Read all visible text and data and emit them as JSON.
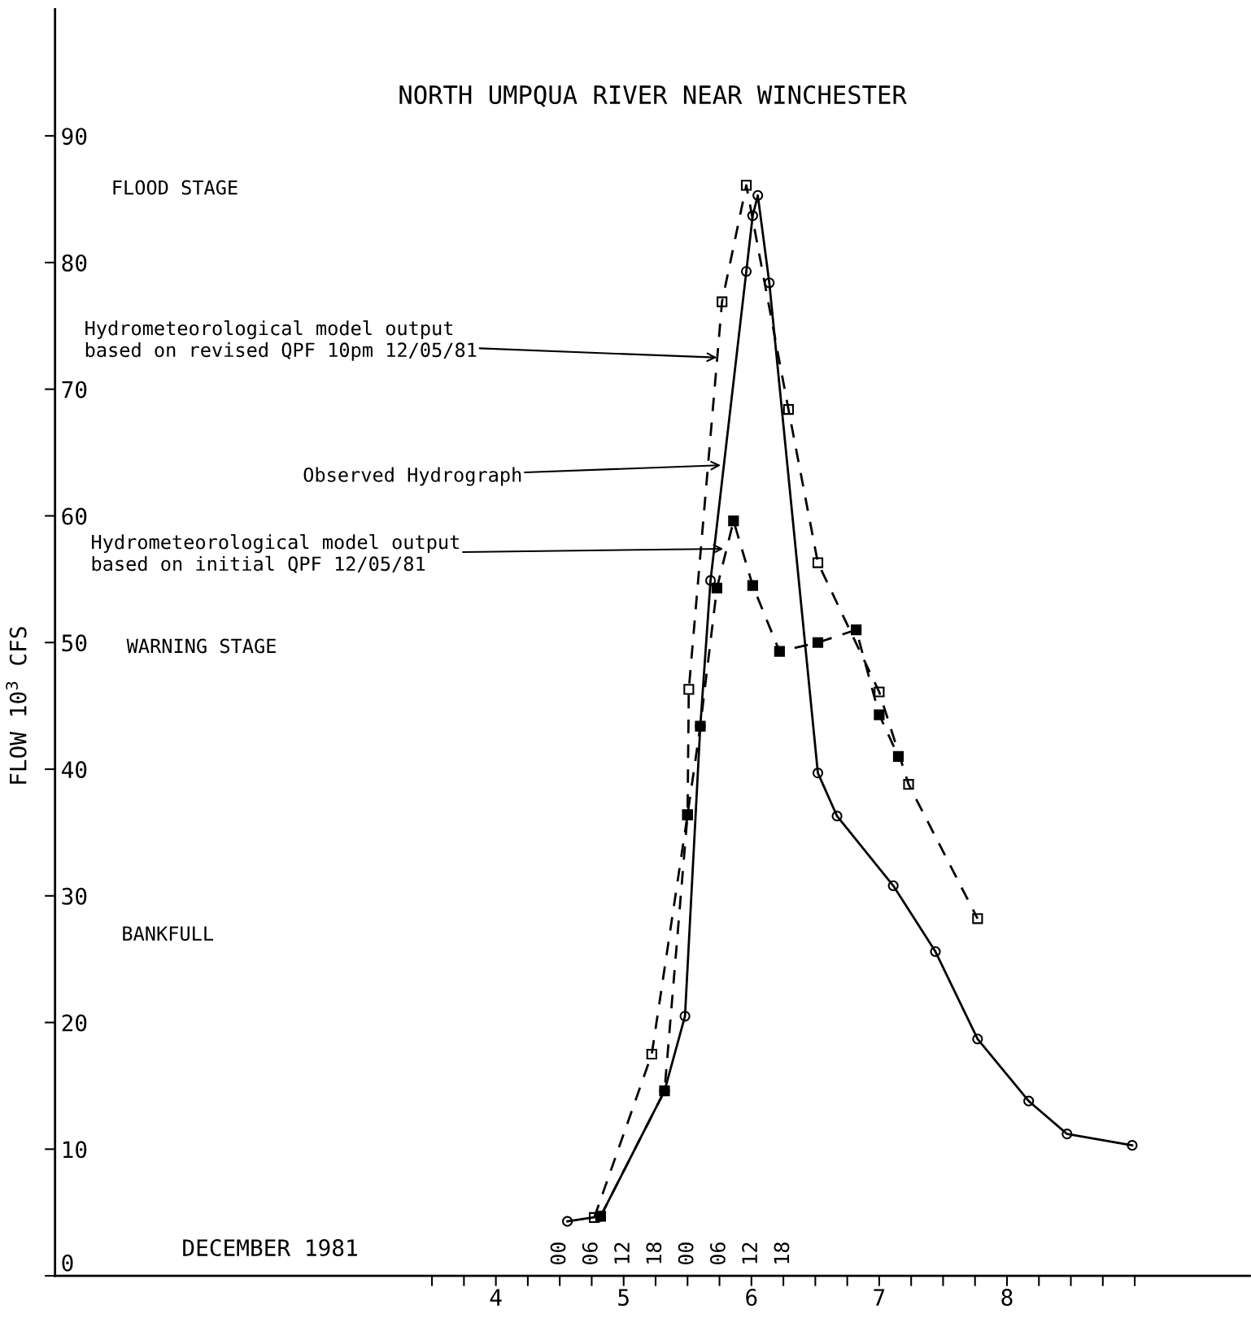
{
  "chart_data": {
    "type": "line",
    "title": "NORTH UMPQUA RIVER NEAR WINCHESTER",
    "xlabel": "DECEMBER 1981",
    "ylabel": "FLOW 10$^{3}$ CFS",
    "xlim": [
      1.05,
      10.4
    ],
    "ylim": [
      0,
      100
    ],
    "yticks": [
      0,
      10,
      20,
      30,
      40,
      50,
      60,
      70,
      80,
      90
    ],
    "xticks": [
      {
        "value": 4,
        "label": null
      },
      {
        "value": 4.25,
        "label": null
      },
      {
        "value": 4.5,
        "label": "4"
      },
      {
        "value": 4.75,
        "label": null
      },
      {
        "value": 5,
        "label": null
      },
      {
        "value": 5.25,
        "label": null
      },
      {
        "value": 5.5,
        "label": "5"
      },
      {
        "value": 5.75,
        "label": null
      },
      {
        "value": 6,
        "label": null
      },
      {
        "value": 6.25,
        "label": null
      },
      {
        "value": 6.5,
        "label": "6"
      },
      {
        "value": 6.75,
        "label": null
      },
      {
        "value": 7,
        "label": null
      },
      {
        "value": 7.25,
        "label": null
      },
      {
        "value": 7.5,
        "label": "7"
      },
      {
        "value": 7.75,
        "label": null
      },
      {
        "value": 8,
        "label": null
      },
      {
        "value": 8.25,
        "label": null
      },
      {
        "value": 8.5,
        "label": "8"
      },
      {
        "value": 8.75,
        "label": null
      },
      {
        "value": 9,
        "label": null
      },
      {
        "value": 9.25,
        "label": null
      },
      {
        "value": 9.5,
        "label": null
      }
    ],
    "grid": false,
    "legend": false,
    "series": [
      {
        "color": "#000000",
        "line_style": "solid",
        "marker": "circle",
        "x": [
          5.06,
          5.32,
          5.82,
          5.98,
          6.1,
          6.18,
          6.46,
          6.51,
          6.55,
          6.64,
          7.02,
          7.17,
          7.61,
          7.94,
          8.27,
          8.67,
          8.97,
          9.48
        ],
        "values": [
          4.3,
          4.7,
          14.6,
          20.5,
          43.4,
          54.9,
          79.3,
          83.7,
          85.3,
          78.4,
          39.7,
          36.3,
          30.8,
          25.6,
          18.7,
          13.8,
          11.2,
          10.3
        ]
      },
      {
        "color": "#000000",
        "line_style": "dashed",
        "marker": "square",
        "x": [
          5.27,
          5.72,
          6.0,
          6.01,
          6.27,
          6.46,
          6.79,
          7.02,
          7.5,
          7.73,
          8.27
        ],
        "values": [
          4.6,
          17.5,
          36.4,
          46.3,
          76.9,
          86.1,
          68.4,
          56.3,
          46.1,
          38.8,
          28.2
        ]
      },
      {
        "color": "#000000",
        "line_style": "dashed",
        "marker": "square",
        "x": [
          5.32,
          5.82,
          6.0,
          6.1,
          6.23,
          6.36,
          6.51,
          6.72,
          7.02,
          7.32,
          7.5,
          7.65
        ],
        "values": [
          4.7,
          14.6,
          36.4,
          43.4,
          54.3,
          59.6,
          54.5,
          49.3,
          50.0,
          51.0,
          44.3,
          41.0
        ]
      }
    ],
    "annotations": [
      "FLOOD STAGE",
      "WARNING STAGE",
      "BANKFULL",
      "00",
      "06",
      "12",
      "18",
      "00",
      "06",
      "12",
      "18",
      {
        "text": "Hydrometeorological model output\nbased on revised QPF 10pm 12/05/81",
        "x": 6.23,
        "y": 72.5
      },
      {
        "text": "Observed Hydrograph",
        "x": 6.26,
        "y": 64
      },
      {
        "text": "Hydrometeorological model output\nbased on initial QPF 12/05/81",
        "x": 6.28,
        "y": 57.4
      }
    ]
  }
}
